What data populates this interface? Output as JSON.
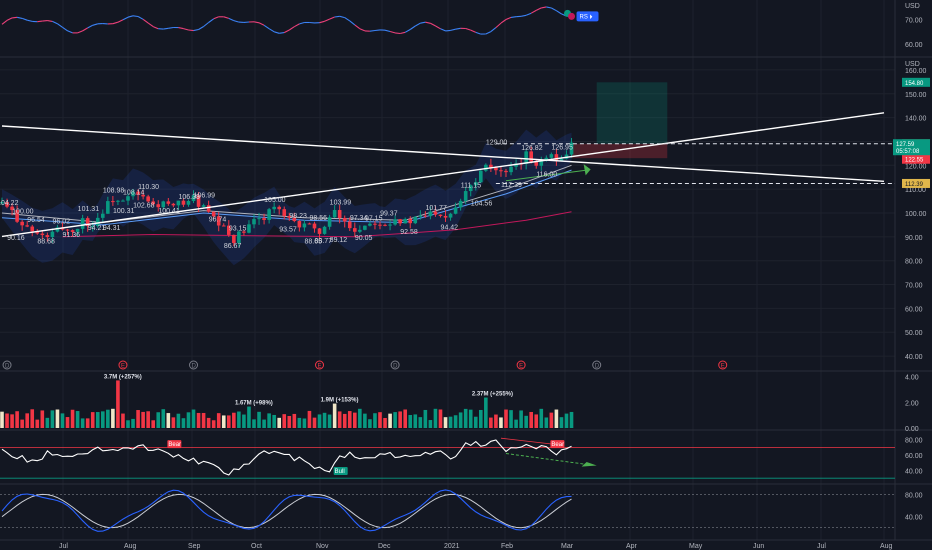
{
  "chart_data": [
    {
      "type": "line",
      "panel": "rs-indicator",
      "axis_unit": "USD",
      "y_ticks": [
        60,
        70
      ],
      "badge": "RS",
      "y_range": [
        55,
        78
      ]
    },
    {
      "type": "candlestick",
      "panel": "price",
      "axis_unit": "USD",
      "y_ticks": [
        40,
        50,
        60,
        70,
        80,
        90,
        100,
        110,
        120,
        130,
        140,
        150,
        160
      ],
      "x_ticks": [
        "Jul",
        "Aug",
        "Sep",
        "Oct",
        "Nov",
        "Dec",
        "2021",
        "Feb",
        "Mar",
        "Apr",
        "May",
        "Jun",
        "Jul",
        "Aug"
      ],
      "current_price": "127.59",
      "countdown": "05:57:08",
      "price_tags": [
        {
          "value": "154.80",
          "color": "#089981"
        },
        {
          "value": "129.00",
          "color": "#e0b64b"
        },
        {
          "value": "122.55",
          "color": "#f23645"
        },
        {
          "value": "112.39",
          "color": "#e0b64b"
        }
      ],
      "annotations": [
        {
          "text": "104.22",
          "x": 1,
          "y": 104.2
        },
        {
          "text": "100.00",
          "x": 4,
          "y": 100.6
        },
        {
          "text": "96.54",
          "x": 7,
          "y": 97.0
        },
        {
          "text": "96.02",
          "x": 12,
          "y": 96.5
        },
        {
          "text": "90.16",
          "x": 3,
          "y": 89.5
        },
        {
          "text": "88.68",
          "x": 9,
          "y": 88.0
        },
        {
          "text": "91.36",
          "x": 14,
          "y": 90.8
        },
        {
          "text": "101.31",
          "x": 17,
          "y": 101.7
        },
        {
          "text": "94.21",
          "x": 19,
          "y": 93.7
        },
        {
          "text": "94.31",
          "x": 22,
          "y": 93.7
        },
        {
          "text": "100.31",
          "x": 24,
          "y": 100.8
        },
        {
          "text": "108.98",
          "x": 22,
          "y": 109.5
        },
        {
          "text": "108.14",
          "x": 26,
          "y": 108.6
        },
        {
          "text": "110.30",
          "x": 29,
          "y": 110.8
        },
        {
          "text": "102.68",
          "x": 28,
          "y": 103.1
        },
        {
          "text": "100.41",
          "x": 33,
          "y": 100.9
        },
        {
          "text": "106.39",
          "x": 37,
          "y": 106.8
        },
        {
          "text": "106.99",
          "x": 40,
          "y": 107.4
        },
        {
          "text": "96.74",
          "x": 43,
          "y": 97.2
        },
        {
          "text": "93.15",
          "x": 47,
          "y": 93.6
        },
        {
          "text": "86.67",
          "x": 46,
          "y": 86.1
        },
        {
          "text": "105.00",
          "x": 54,
          "y": 105.5
        },
        {
          "text": "98.23",
          "x": 59,
          "y": 98.7
        },
        {
          "text": "98.56",
          "x": 63,
          "y": 98.0
        },
        {
          "text": "93.57",
          "x": 57,
          "y": 93.0
        },
        {
          "text": "88.65",
          "x": 62,
          "y": 88.1
        },
        {
          "text": "88.77",
          "x": 64,
          "y": 88.2
        },
        {
          "text": "103.99",
          "x": 67,
          "y": 104.5
        },
        {
          "text": "89.12",
          "x": 67,
          "y": 88.6
        },
        {
          "text": "97.34",
          "x": 71,
          "y": 97.8
        },
        {
          "text": "97.15",
          "x": 74,
          "y": 97.6
        },
        {
          "text": "99.37",
          "x": 77,
          "y": 99.8
        },
        {
          "text": "90.05",
          "x": 72,
          "y": 89.5
        },
        {
          "text": "92.58",
          "x": 81,
          "y": 92.1
        },
        {
          "text": "101.77",
          "x": 86,
          "y": 102.2
        },
        {
          "text": "94.42",
          "x": 89,
          "y": 93.9
        },
        {
          "text": "111.15",
          "x": 93,
          "y": 111.6
        },
        {
          "text": "104.56",
          "x": 95,
          "y": 104.0
        },
        {
          "text": "129.00",
          "x": 98,
          "y": 129.5
        },
        {
          "text": "112.39",
          "x": 101,
          "y": 111.8
        },
        {
          "text": "116.00",
          "x": 108,
          "y": 116.1
        },
        {
          "text": "126.82",
          "x": 105,
          "y": 127.3
        },
        {
          "text": "126.95",
          "x": 111,
          "y": 127.4
        }
      ],
      "close_path": [
        [
          0,
          104
        ],
        [
          2,
          100
        ],
        [
          4,
          96
        ],
        [
          6,
          92
        ],
        [
          8,
          90
        ],
        [
          10,
          91
        ],
        [
          12,
          94
        ],
        [
          14,
          92
        ],
        [
          16,
          97
        ],
        [
          18,
          95
        ],
        [
          20,
          101
        ],
        [
          22,
          106
        ],
        [
          24,
          104
        ],
        [
          26,
          108
        ],
        [
          28,
          106
        ],
        [
          30,
          103
        ],
        [
          32,
          104
        ],
        [
          34,
          102
        ],
        [
          36,
          105
        ],
        [
          38,
          106
        ],
        [
          40,
          102
        ],
        [
          42,
          97
        ],
        [
          44,
          93
        ],
        [
          46,
          89
        ],
        [
          48,
          92
        ],
        [
          50,
          96
        ],
        [
          52,
          99
        ],
        [
          54,
          103
        ],
        [
          56,
          98
        ],
        [
          58,
          95
        ],
        [
          60,
          96
        ],
        [
          62,
          92
        ],
        [
          64,
          94
        ],
        [
          66,
          100
        ],
        [
          68,
          96
        ],
        [
          70,
          93
        ],
        [
          72,
          95
        ],
        [
          74,
          97
        ],
        [
          76,
          96
        ],
        [
          78,
          98
        ],
        [
          80,
          96
        ],
        [
          82,
          97
        ],
        [
          84,
          99
        ],
        [
          86,
          101
        ],
        [
          88,
          99
        ],
        [
          90,
          103
        ],
        [
          92,
          110
        ],
        [
          94,
          114
        ],
        [
          96,
          122
        ],
        [
          98,
          118
        ],
        [
          100,
          116
        ],
        [
          102,
          119
        ],
        [
          104,
          124
        ],
        [
          106,
          121
        ],
        [
          108,
          125
        ],
        [
          110,
          122
        ],
        [
          112,
          126
        ],
        [
          113,
          127.59
        ]
      ],
      "ema_lines": [
        {
          "color": "#b2b5be",
          "path": [
            [
              0,
              100
            ],
            [
              20,
              96
            ],
            [
              40,
              101
            ],
            [
              60,
              98
            ],
            [
              80,
              97
            ],
            [
              100,
              110
            ],
            [
              113,
              120
            ]
          ]
        },
        {
          "color": "#5b9cf6",
          "path": [
            [
              0,
              98
            ],
            [
              20,
              95
            ],
            [
              40,
              100
            ],
            [
              60,
              97
            ],
            [
              80,
              96
            ],
            [
              100,
              108
            ],
            [
              113,
              118
            ]
          ]
        },
        {
          "color": "#c2185b",
          "path": [
            [
              12,
              90
            ],
            [
              30,
              91
            ],
            [
              50,
              90.5
            ],
            [
              70,
              90
            ],
            [
              90,
              93
            ],
            [
              104,
              97
            ],
            [
              113,
              100.5
            ]
          ]
        }
      ],
      "trendlines": [
        {
          "from": [
            0,
            136.5
          ],
          "to": [
            175,
            113.3
          ]
        },
        {
          "from": [
            0,
            90.2
          ],
          "to": [
            175,
            142.0
          ]
        }
      ],
      "target_zone": [
        118,
        132,
        129.0,
        154.8
      ],
      "y_range": [
        35,
        165
      ]
    },
    {
      "type": "bar",
      "panel": "volume",
      "y_ticks": [
        "0.00",
        "2.00",
        "4.00"
      ],
      "labels": [
        {
          "text": "3.7M (+257%)",
          "x": 23,
          "value": 3.7
        },
        {
          "text": "1.67M (+98%)",
          "x": 49,
          "value": 1.67
        },
        {
          "text": "1.9M (+153%)",
          "x": 66,
          "value": 1.9
        },
        {
          "text": "2.37M (+255%)",
          "x": 96,
          "value": 2.37
        }
      ],
      "y_range": [
        0,
        4.2
      ],
      "earnings_markers": [
        {
          "text": "D",
          "x": 1,
          "color": "#787b86"
        },
        {
          "text": "E",
          "x": 24,
          "color": "#f23645"
        },
        {
          "text": "D",
          "x": 38,
          "color": "#787b86"
        },
        {
          "text": "E",
          "x": 63,
          "color": "#f23645"
        },
        {
          "text": "D",
          "x": 78,
          "color": "#787b86"
        },
        {
          "text": "E",
          "x": 103,
          "color": "#f23645"
        },
        {
          "text": "D",
          "x": 118,
          "color": "#787b86"
        },
        {
          "text": "E",
          "x": 143,
          "color": "#f23645"
        }
      ]
    },
    {
      "type": "line",
      "panel": "rsi",
      "y_ticks": [
        40,
        60,
        80
      ],
      "levels": [
        70,
        30
      ],
      "y_range": [
        25,
        90
      ],
      "path": [
        [
          0,
          65
        ],
        [
          3,
          58
        ],
        [
          6,
          52
        ],
        [
          9,
          62
        ],
        [
          12,
          55
        ],
        [
          15,
          60
        ],
        [
          18,
          66
        ],
        [
          21,
          70
        ],
        [
          24,
          68
        ],
        [
          27,
          72
        ],
        [
          30,
          68
        ],
        [
          33,
          60
        ],
        [
          36,
          56
        ],
        [
          39,
          52
        ],
        [
          42,
          44
        ],
        [
          45,
          38
        ],
        [
          48,
          48
        ],
        [
          51,
          60
        ],
        [
          54,
          68
        ],
        [
          57,
          58
        ],
        [
          60,
          52
        ],
        [
          63,
          42
        ],
        [
          65,
          36
        ],
        [
          67,
          58
        ],
        [
          69,
          62
        ],
        [
          71,
          52
        ],
        [
          74,
          60
        ],
        [
          77,
          62
        ],
        [
          80,
          56
        ],
        [
          83,
          62
        ],
        [
          86,
          66
        ],
        [
          89,
          55
        ],
        [
          92,
          72
        ],
        [
          95,
          75
        ],
        [
          98,
          80
        ],
        [
          100,
          66
        ],
        [
          102,
          70
        ],
        [
          104,
          74
        ],
        [
          106,
          68
        ],
        [
          108,
          70
        ],
        [
          110,
          62
        ],
        [
          113,
          68
        ]
      ],
      "tags": [
        {
          "text": "Bear",
          "x": 34,
          "y": 73,
          "color": "#f23645"
        },
        {
          "text": "Bull",
          "x": 67,
          "y": 38,
          "color": "#089981"
        },
        {
          "text": "Bear",
          "x": 110,
          "y": 73,
          "color": "#f23645"
        }
      ]
    },
    {
      "type": "line",
      "panel": "stochastic",
      "y_ticks": [
        40,
        80
      ],
      "levels": [
        80,
        20
      ],
      "y_range": [
        5,
        95
      ],
      "x_ticks": [
        "Jul",
        "Aug",
        "Sep",
        "Oct",
        "Nov",
        "Dec",
        "2021",
        "Feb",
        "Mar",
        "Apr",
        "May",
        "Jun",
        "Jul",
        "Aug"
      ]
    }
  ]
}
